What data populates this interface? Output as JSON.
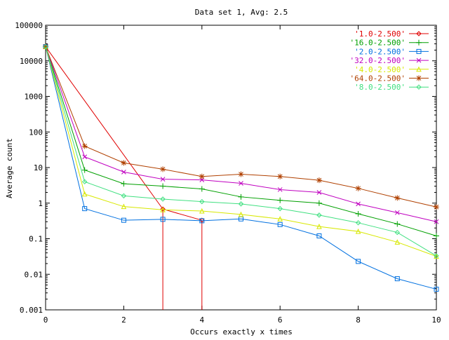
{
  "chart_data": {
    "type": "line",
    "title": "Data set 1, Avg: 2.5",
    "xlabel": "Occurs exactly x times",
    "ylabel": "Average count",
    "y_scale": "log",
    "xlim": [
      0,
      10
    ],
    "ylim": [
      0.001,
      100000
    ],
    "x_ticks": [
      0,
      2,
      4,
      6,
      8,
      10
    ],
    "x_tick_labels": [
      "0",
      "2",
      "4",
      "6",
      "8",
      "10"
    ],
    "y_ticks": [
      0.001,
      0.01,
      0.1,
      1,
      10,
      100,
      1000,
      10000,
      100000
    ],
    "y_tick_labels": [
      "0.001",
      "0.01",
      "0.1",
      "1",
      "10",
      "100",
      "1000",
      "10000",
      "100000"
    ],
    "grid": false,
    "legend_position": "top-right",
    "series": [
      {
        "name": "'1.0-2.500'",
        "color": "#e00000",
        "marker": "diamond",
        "x": [
          0,
          3,
          4
        ],
        "y": [
          25000,
          0.68,
          0.33
        ],
        "drop_to_axis_x": [
          3,
          4
        ]
      },
      {
        "name": "'16.0-2.500'",
        "color": "#00a000",
        "marker": "plus",
        "x": [
          0,
          1,
          2,
          3,
          4,
          5,
          6,
          7,
          8,
          9,
          10
        ],
        "y": [
          25000,
          8.5,
          3.5,
          3.0,
          2.5,
          1.5,
          1.2,
          1.0,
          0.5,
          0.26,
          0.12
        ]
      },
      {
        "name": "'2.0-2.500'",
        "color": "#0070e0",
        "marker": "square",
        "x": [
          0,
          1,
          2,
          3,
          4,
          5,
          6,
          7,
          8,
          9,
          10
        ],
        "y": [
          25000,
          0.7,
          0.33,
          0.35,
          0.32,
          0.36,
          0.25,
          0.12,
          0.023,
          0.0075,
          0.0038
        ]
      },
      {
        "name": "'32.0-2.500'",
        "color": "#c000c0",
        "marker": "cross",
        "x": [
          0,
          1,
          2,
          3,
          4,
          5,
          6,
          7,
          8,
          9,
          10
        ],
        "y": [
          25000,
          20,
          7.5,
          4.7,
          4.5,
          3.6,
          2.4,
          2.0,
          0.95,
          0.54,
          0.3
        ]
      },
      {
        "name": "'4.0-2.500'",
        "color": "#d8e800",
        "marker": "triangle",
        "x": [
          0,
          1,
          2,
          3,
          4,
          5,
          6,
          7,
          8,
          9,
          10
        ],
        "y": [
          25000,
          1.8,
          0.8,
          0.65,
          0.6,
          0.48,
          0.36,
          0.22,
          0.16,
          0.08,
          0.032
        ]
      },
      {
        "name": "'64.0-2.500'",
        "color": "#b04000",
        "marker": "star",
        "x": [
          0,
          1,
          2,
          3,
          4,
          5,
          6,
          7,
          8,
          9,
          10
        ],
        "y": [
          25000,
          40,
          13.5,
          9.0,
          5.6,
          6.5,
          5.6,
          4.4,
          2.6,
          1.4,
          0.78
        ]
      },
      {
        "name": "'8.0-2.500'",
        "color": "#40e080",
        "marker": "diamond",
        "x": [
          0,
          1,
          2,
          3,
          4,
          5,
          6,
          7,
          8,
          9,
          10
        ],
        "y": [
          25000,
          4.0,
          1.6,
          1.3,
          1.1,
          0.95,
          0.7,
          0.46,
          0.28,
          0.15,
          0.033
        ]
      }
    ]
  }
}
